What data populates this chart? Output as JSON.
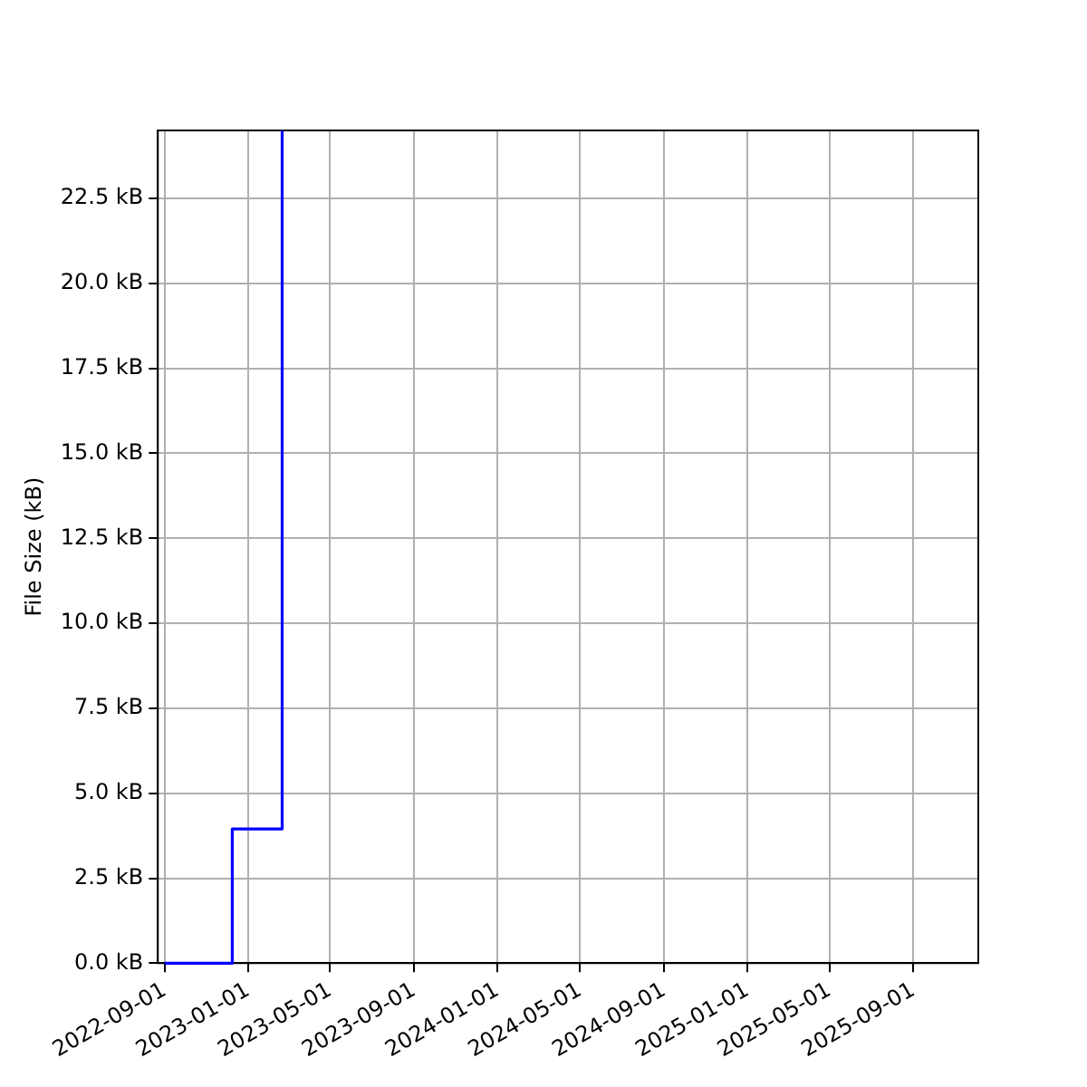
{
  "chart_data": {
    "type": "step",
    "ylabel": "File Size (kB)",
    "x": [
      "2022-09-01",
      "2022-12-09",
      "2023-02-20"
    ],
    "series": [
      {
        "color": "#0000ff",
        "values": [
          0,
          3.95,
          24.5
        ]
      }
    ],
    "xlim": [
      "2022-08-22",
      "2025-12-05"
    ],
    "xticks": [
      "2022-09-01",
      "2023-01-01",
      "2023-05-01",
      "2023-09-01",
      "2024-01-01",
      "2024-05-01",
      "2024-09-01",
      "2025-01-01",
      "2025-05-01",
      "2025-09-01"
    ],
    "ylim": [
      0,
      24.5
    ],
    "yticks": [
      {
        "value": 0,
        "label": "0.0 kB"
      },
      {
        "value": 2.5,
        "label": "2.5 kB"
      },
      {
        "value": 5,
        "label": "5.0 kB"
      },
      {
        "value": 7.5,
        "label": "7.5 kB"
      },
      {
        "value": 10,
        "label": "10.0 kB"
      },
      {
        "value": 12.5,
        "label": "12.5 kB"
      },
      {
        "value": 15,
        "label": "15.0 kB"
      },
      {
        "value": 17.5,
        "label": "17.5 kB"
      },
      {
        "value": 20,
        "label": "20.0 kB"
      },
      {
        "value": 22.5,
        "label": "22.5 kB"
      }
    ],
    "grid": true,
    "legend": false
  }
}
